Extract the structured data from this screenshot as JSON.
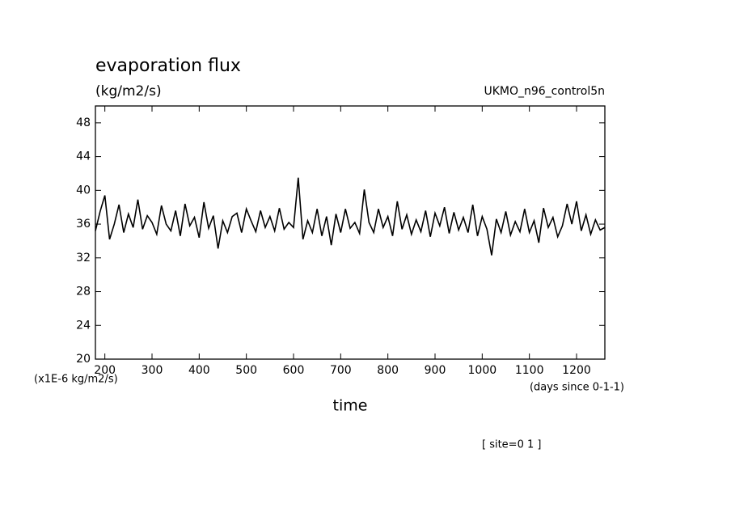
{
  "chart_data": {
    "type": "line",
    "title": "evaporation flux",
    "subtitle": "(kg/m2/s)",
    "source_label": "UKMO_n96_control5n",
    "y_unit_label": "(x1E-6 kg/m2/s)",
    "x_unit_label": "(days since 0-1-1)",
    "x_label": "time",
    "footnote": "[ site=0 1 ]",
    "color": "#000000",
    "x": [
      180,
      190,
      200,
      210,
      220,
      230,
      240,
      250,
      260,
      270,
      280,
      290,
      300,
      310,
      320,
      330,
      340,
      350,
      360,
      370,
      380,
      390,
      400,
      410,
      420,
      430,
      440,
      450,
      460,
      470,
      480,
      490,
      500,
      510,
      520,
      530,
      540,
      550,
      560,
      570,
      580,
      590,
      600,
      610,
      620,
      630,
      640,
      650,
      660,
      670,
      680,
      690,
      700,
      710,
      720,
      730,
      740,
      750,
      760,
      770,
      780,
      790,
      800,
      810,
      820,
      830,
      840,
      850,
      860,
      870,
      880,
      890,
      900,
      910,
      920,
      930,
      940,
      950,
      960,
      970,
      980,
      990,
      1000,
      1010,
      1020,
      1030,
      1040,
      1050,
      1060,
      1070,
      1080,
      1090,
      1100,
      1110,
      1120,
      1130,
      1140,
      1150,
      1160,
      1170,
      1180,
      1190,
      1200,
      1210,
      1220,
      1230,
      1240,
      1250,
      1260
    ],
    "values": [
      35.2,
      37.5,
      39.4,
      34.2,
      36.0,
      38.3,
      35.0,
      37.2,
      35.6,
      38.9,
      35.4,
      37.0,
      36.2,
      34.8,
      38.2,
      36.0,
      35.2,
      37.6,
      34.6,
      38.4,
      35.8,
      36.8,
      34.4,
      38.6,
      35.5,
      37.0,
      33.1,
      36.4,
      35.0,
      36.9,
      37.3,
      35.0,
      37.8,
      36.4,
      35.1,
      37.6,
      35.6,
      36.9,
      35.2,
      37.9,
      35.4,
      36.2,
      35.6,
      41.5,
      34.2,
      36.4,
      35.0,
      37.8,
      34.6,
      36.9,
      33.5,
      37.2,
      35.0,
      37.8,
      35.5,
      36.2,
      34.9,
      40.1,
      36.2,
      35.0,
      37.8,
      35.6,
      36.9,
      34.6,
      38.7,
      35.4,
      37.1,
      34.8,
      36.5,
      35.1,
      37.6,
      34.5,
      37.3,
      35.8,
      38.0,
      34.9,
      37.4,
      35.3,
      36.8,
      35.0,
      38.3,
      34.6,
      36.9,
      35.4,
      32.3,
      36.6,
      35.0,
      37.5,
      34.7,
      36.3,
      35.1,
      37.8,
      35.0,
      36.4,
      33.8,
      37.9,
      35.6,
      36.8,
      34.5,
      35.8,
      38.4,
      36.0,
      38.7,
      35.2,
      37.1,
      34.8,
      36.5,
      35.3,
      35.6
    ],
    "xlim": [
      180,
      1260
    ],
    "ylim": [
      20,
      50
    ],
    "xticks": [
      200,
      300,
      400,
      500,
      600,
      700,
      800,
      900,
      1000,
      1100,
      1200
    ],
    "yticks": [
      20,
      24,
      28,
      32,
      36,
      40,
      44,
      48
    ],
    "grid": false
  }
}
